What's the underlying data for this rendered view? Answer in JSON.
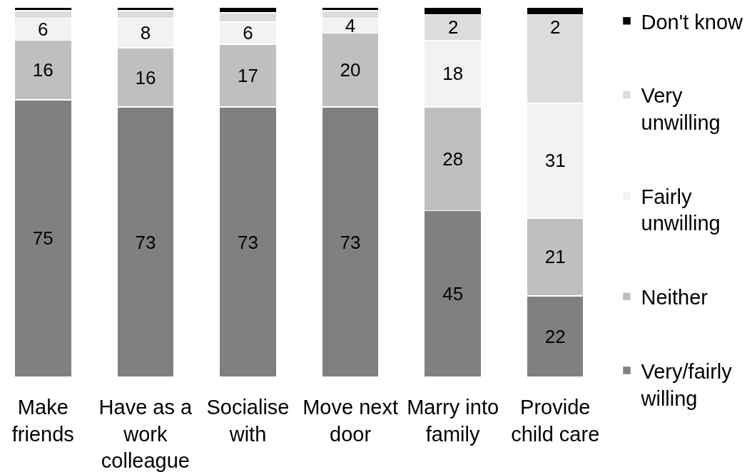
{
  "chart_data": {
    "type": "bar",
    "stacked": true,
    "categories": [
      "Make friends",
      "Have as a work colleague",
      "Socialise with",
      "Move next door",
      "Marry into family",
      "Provide child care"
    ],
    "series": [
      {
        "name": "Very/fairly willing",
        "color": "#808080",
        "values": [
          75,
          73,
          73,
          73,
          45,
          22
        ],
        "value_labels": [
          "75",
          "73",
          "73",
          "73",
          "45",
          "22"
        ]
      },
      {
        "name": "Neither",
        "color": "#bfbfbf",
        "values": [
          16,
          16,
          17,
          20,
          28,
          21
        ],
        "value_labels": [
          "16",
          "16",
          "17",
          "20",
          "28",
          "21"
        ]
      },
      {
        "name": "Fairly unwilling",
        "color": "#f2f2f2",
        "values": [
          6,
          8,
          6,
          4,
          18,
          31
        ],
        "value_labels": [
          "6",
          "8",
          "6",
          "4",
          "18",
          "31"
        ]
      },
      {
        "name": "Very unwilling",
        "color": "#dcdcdc",
        "values": [
          2,
          2,
          2.5,
          2,
          7,
          24
        ]
      },
      {
        "name": "Don't know",
        "color": "#000000",
        "values": [
          1,
          1,
          1.5,
          1,
          2,
          2
        ],
        "value_labels": [
          null,
          null,
          null,
          null,
          "2",
          "2"
        ]
      }
    ],
    "legend": "right"
  }
}
